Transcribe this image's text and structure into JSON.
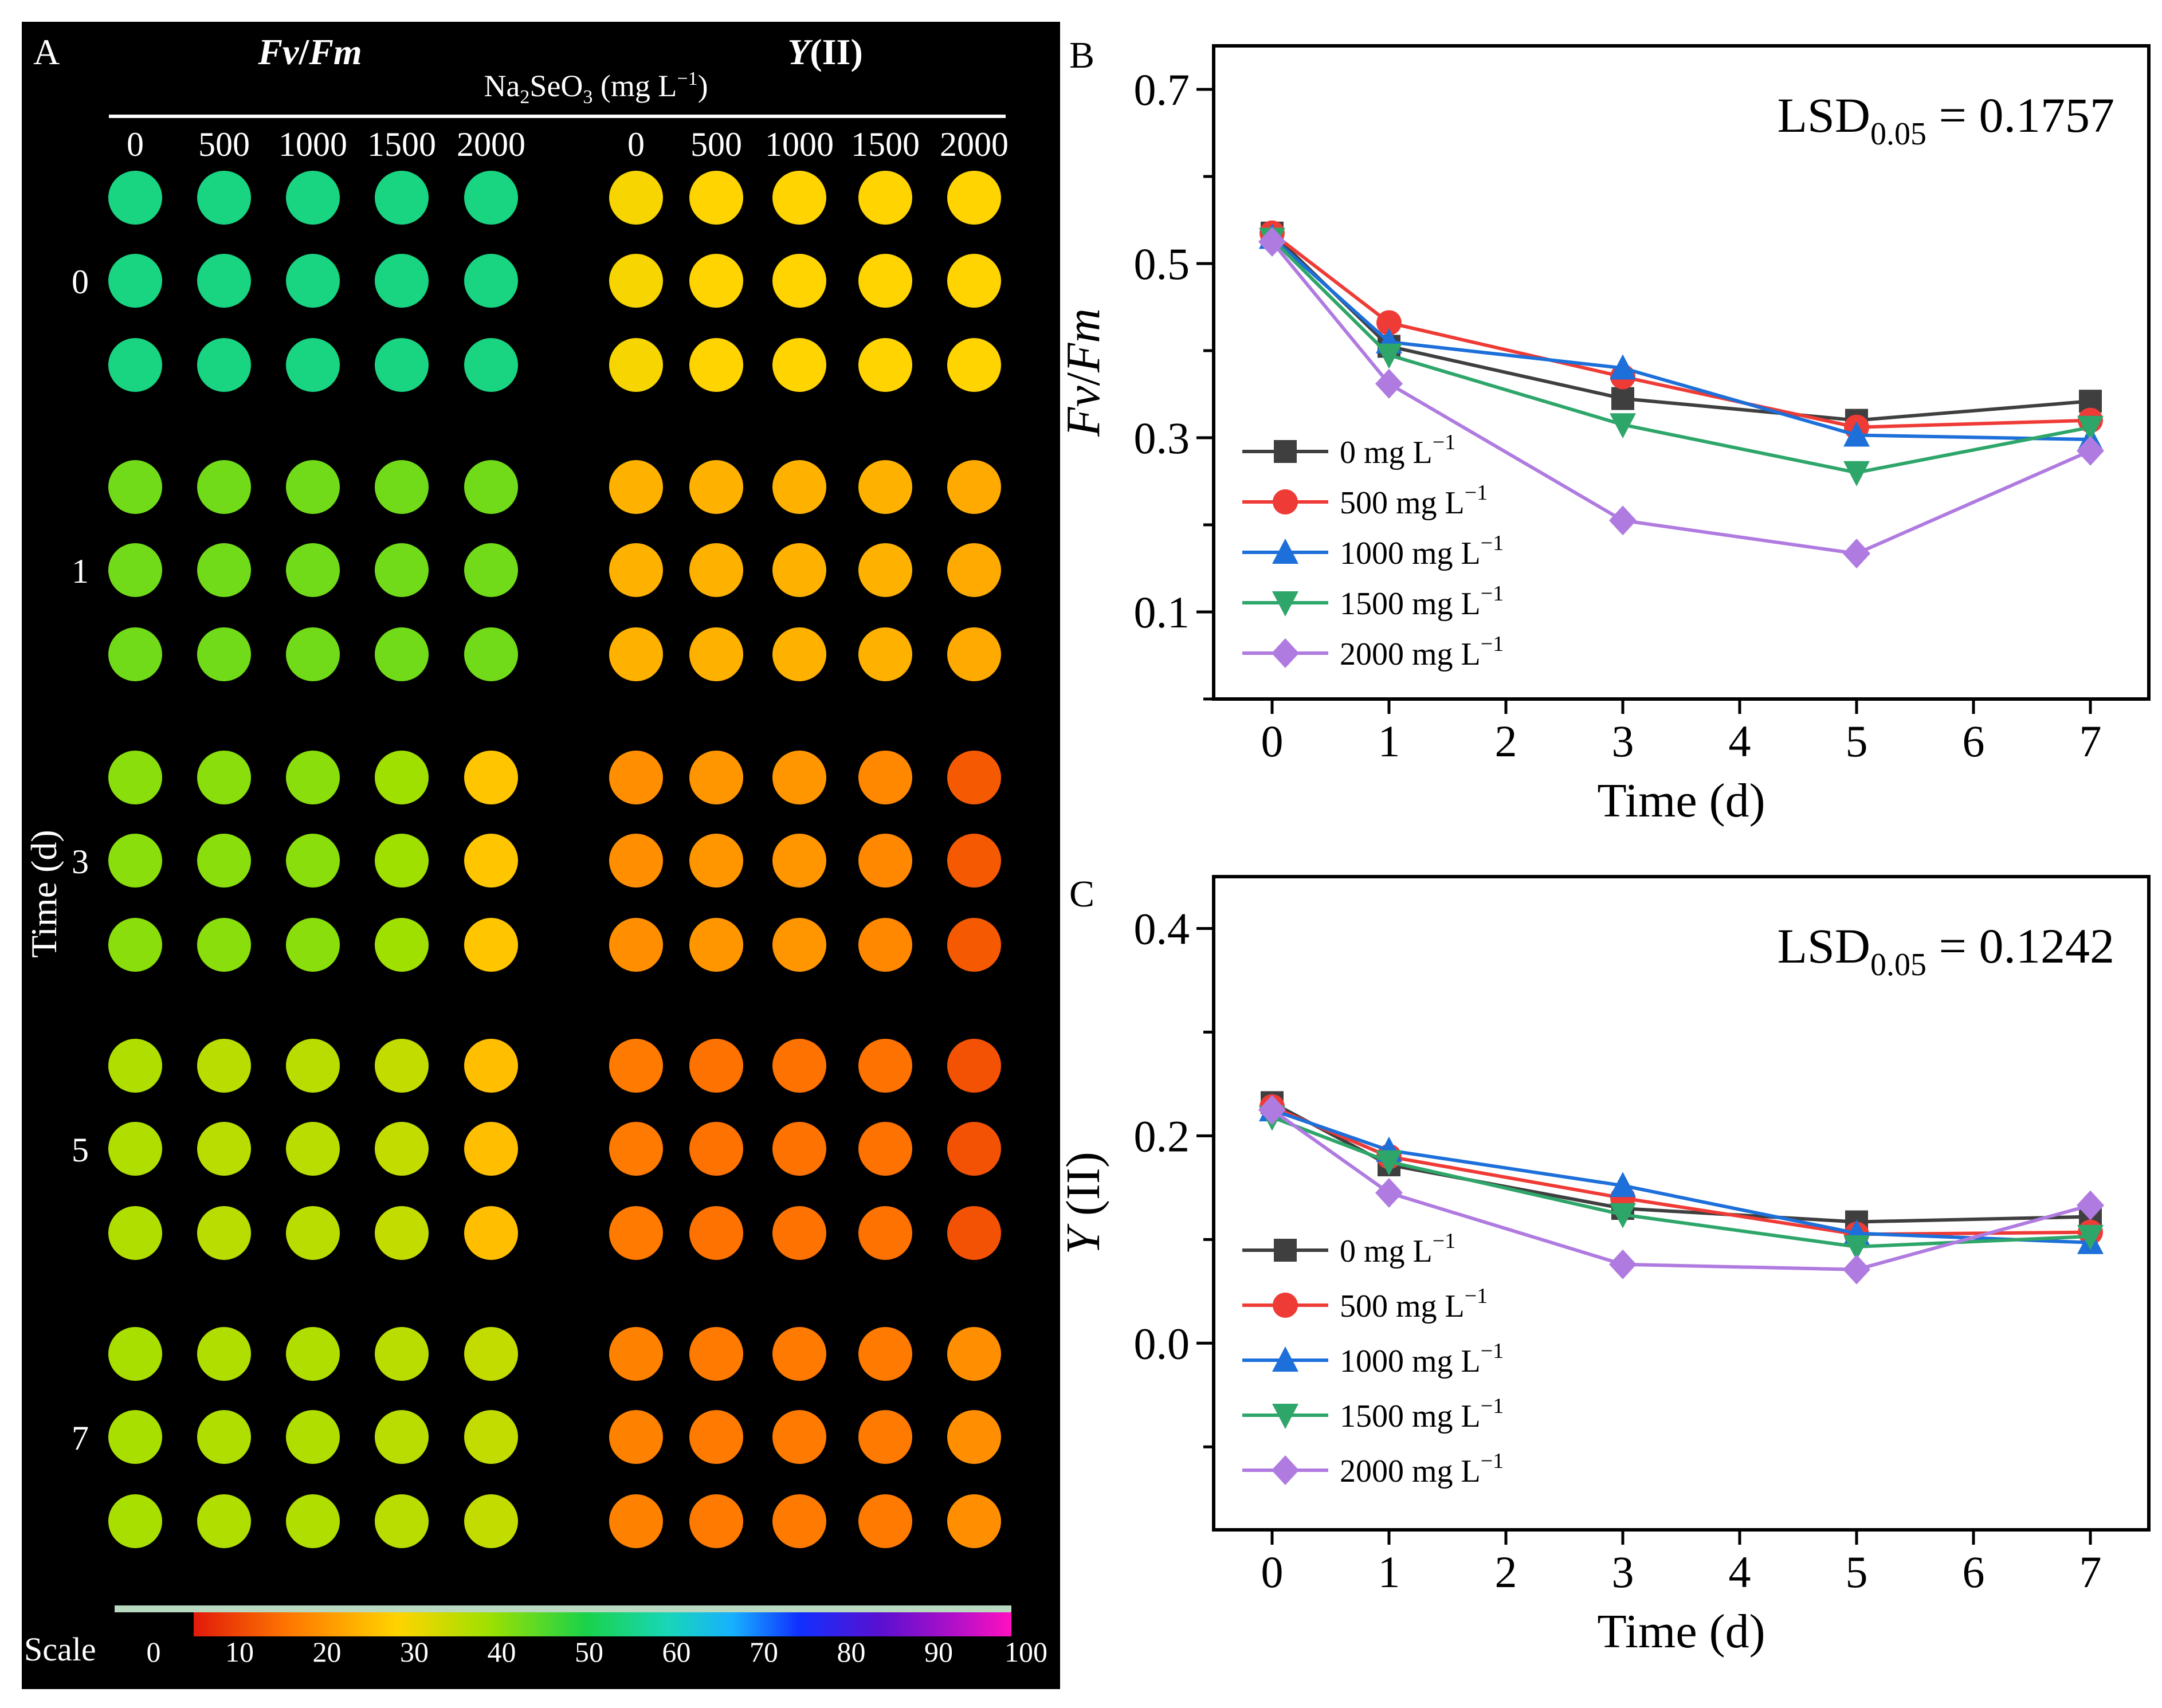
{
  "colors": {
    "series": [
      "#3f3f3f",
      "#ef3b36",
      "#1d6fd9",
      "#2ea66a",
      "#b07be0"
    ],
    "panel_bg": "#000000"
  },
  "panel_a": {
    "letter": "A",
    "fvfm_title_a": "Fv",
    "fvfm_title_sep": "/",
    "fvfm_title_b": "Fm",
    "y_title_a": "Y",
    "y_title_b": "(II)",
    "conc_label_a": "Na",
    "conc_sub_2": "2",
    "conc_label_b": "SeO",
    "conc_sub_3": "3",
    "conc_label_c": " (mg L",
    "conc_sup": "−1",
    "conc_label_d": ")",
    "concentrations": [
      "0",
      "500",
      "1000",
      "1500",
      "2000"
    ],
    "time_axis_label": "Time (d)",
    "time_labels": [
      "0",
      "1",
      "3",
      "5",
      "7"
    ],
    "scale_label": "Scale",
    "scale_ticks": [
      "0",
      "10",
      "20",
      "30",
      "40",
      "50",
      "60",
      "70",
      "80",
      "90",
      "100"
    ],
    "fvfm_intensity": [
      [
        53,
        53,
        53,
        53,
        53
      ],
      [
        40,
        40,
        40,
        40,
        40
      ],
      [
        38,
        38,
        38,
        36,
        23
      ],
      [
        34,
        33,
        33,
        32,
        22
      ],
      [
        35,
        34,
        34,
        33,
        32
      ]
    ],
    "y_intensity": [
      [
        26,
        25,
        25,
        25,
        25
      ],
      [
        20,
        20,
        20,
        20,
        19
      ],
      [
        15,
        16,
        16,
        14,
        8
      ],
      [
        12,
        11,
        11,
        11,
        7
      ],
      [
        13,
        12,
        12,
        12,
        15
      ]
    ]
  },
  "chart_data": [
    {
      "type": "line",
      "panel": "B",
      "ylabel_a": "Fv",
      "ylabel_sep": "/",
      "ylabel_b": "Fm",
      "xlabel": "Time (d)",
      "annotation_a": "LSD",
      "annotation_sub": "0.05",
      "annotation_b": " = 0.1757",
      "xlim": [
        -0.5,
        7.5
      ],
      "ylim": [
        0.0,
        0.75
      ],
      "xticks": [
        "0",
        "1",
        "2",
        "3",
        "4",
        "5",
        "6",
        "7"
      ],
      "yticks": [
        "0.1",
        "0.3",
        "0.5",
        "0.7"
      ],
      "x": [
        0,
        1,
        3,
        5,
        7
      ],
      "series": [
        {
          "name": "0 mg L",
          "sup": "−1",
          "marker": "square",
          "values": [
            0.535,
            0.405,
            0.345,
            0.32,
            0.342
          ]
        },
        {
          "name": "500 mg L",
          "sup": "−1",
          "marker": "circle",
          "values": [
            0.535,
            0.432,
            0.37,
            0.312,
            0.32
          ]
        },
        {
          "name": "1000 mg L",
          "sup": "−1",
          "marker": "triangle-up",
          "values": [
            0.53,
            0.41,
            0.38,
            0.303,
            0.298
          ]
        },
        {
          "name": "1500 mg L",
          "sup": "−1",
          "marker": "triangle-down",
          "values": [
            0.528,
            0.395,
            0.315,
            0.26,
            0.312
          ]
        },
        {
          "name": "2000 mg L",
          "sup": "−1",
          "marker": "diamond",
          "values": [
            0.525,
            0.362,
            0.205,
            0.167,
            0.285
          ]
        }
      ]
    },
    {
      "type": "line",
      "panel": "C",
      "ylabel_a": "Y",
      "ylabel_sep": " ",
      "ylabel_b": "(II)",
      "xlabel": "Time (d)",
      "annotation_a": "LSD",
      "annotation_sub": "0.05",
      "annotation_b": " = 0.1242",
      "xlim": [
        -0.5,
        7.5
      ],
      "ylim": [
        -0.18,
        0.45
      ],
      "xticks": [
        "0",
        "1",
        "2",
        "3",
        "4",
        "5",
        "6",
        "7"
      ],
      "yticks": [
        "0.0",
        "0.2",
        "0.4"
      ],
      "x": [
        0,
        1,
        3,
        5,
        7
      ],
      "series": [
        {
          "name": "0 mg L",
          "sup": "−1",
          "marker": "square",
          "values": [
            0.232,
            0.172,
            0.13,
            0.117,
            0.122
          ]
        },
        {
          "name": "500 mg L",
          "sup": "−1",
          "marker": "circle",
          "values": [
            0.228,
            0.18,
            0.14,
            0.105,
            0.107
          ]
        },
        {
          "name": "1000 mg L",
          "sup": "−1",
          "marker": "triangle-up",
          "values": [
            0.225,
            0.186,
            0.152,
            0.106,
            0.097
          ]
        },
        {
          "name": "1500 mg L",
          "sup": "−1",
          "marker": "triangle-down",
          "values": [
            0.218,
            0.175,
            0.124,
            0.093,
            0.103
          ]
        },
        {
          "name": "2000 mg L",
          "sup": "−1",
          "marker": "diamond",
          "values": [
            0.225,
            0.145,
            0.076,
            0.071,
            0.133
          ]
        }
      ]
    }
  ]
}
